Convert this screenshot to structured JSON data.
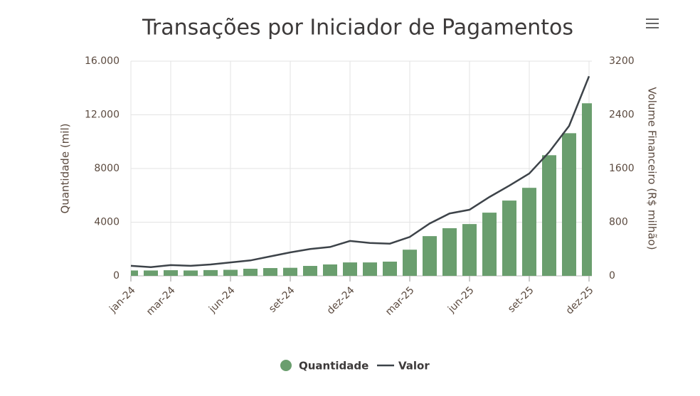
{
  "chart_data": {
    "type": "combo",
    "title": "Transações por Iniciador de Pagamentos",
    "categories": [
      "jan-24",
      null,
      "mar-24",
      null,
      null,
      "jun-24",
      null,
      null,
      "set-24",
      null,
      null,
      "dez-24",
      null,
      null,
      "mar-25",
      null,
      null,
      "jun-25",
      null,
      null,
      "set-25",
      null,
      null,
      "dez-25"
    ],
    "series": [
      {
        "name": "Quantidade",
        "type": "bar",
        "axis": "y",
        "color": "#6a9e6e",
        "values": [
          400,
          400,
          420,
          400,
          430,
          450,
          530,
          580,
          600,
          740,
          850,
          1000,
          1000,
          1060,
          1950,
          2960,
          3550,
          3860,
          4710,
          5610,
          6560,
          8990,
          10630,
          12860
        ]
      },
      {
        "name": "Valor",
        "type": "line",
        "axis": "y2",
        "color": "#3d4349",
        "values": [
          150,
          130,
          160,
          150,
          170,
          200,
          230,
          290,
          350,
          400,
          430,
          520,
          490,
          480,
          580,
          780,
          930,
          985,
          1175,
          1345,
          1525,
          1845,
          2235,
          2975
        ]
      }
    ],
    "y_label": "Quantidade (mil)",
    "y2_label": "Volume Financeiro (R$ milhão)",
    "ylim": [
      0,
      16000
    ],
    "yticks": [
      0,
      4000,
      8000,
      {
        "value": 12000,
        "label": "12.000"
      },
      {
        "value": 16000,
        "label": "16.000"
      }
    ],
    "y2lim": [
      0,
      3200
    ],
    "y2ticks": [
      0,
      800,
      1600,
      2400,
      3200
    ],
    "grid": true,
    "legend": "bottom"
  }
}
